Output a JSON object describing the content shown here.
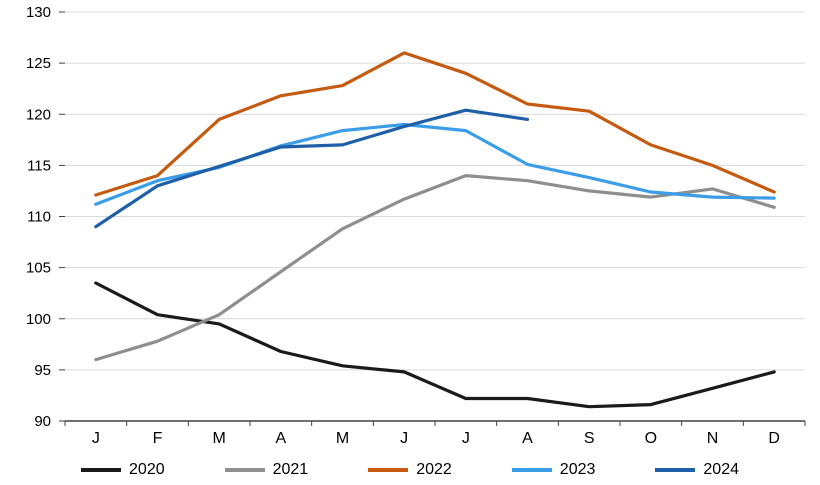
{
  "chart_data": {
    "type": "line",
    "categories": [
      "J",
      "F",
      "M",
      "A",
      "M",
      "J",
      "J",
      "A",
      "S",
      "O",
      "N",
      "D"
    ],
    "ylim": [
      90,
      130
    ],
    "ytick_step": 5,
    "grid": true,
    "legend_position": "bottom",
    "title": "",
    "xlabel": "",
    "ylabel": "",
    "series": [
      {
        "name": "2020",
        "color": "#1a1a1a",
        "values": [
          103.5,
          100.4,
          99.5,
          96.8,
          95.4,
          94.8,
          92.2,
          92.2,
          91.4,
          91.6,
          93.2,
          94.8
        ]
      },
      {
        "name": "2021",
        "color": "#8e8e8e",
        "values": [
          96.0,
          97.8,
          100.4,
          104.6,
          108.8,
          111.7,
          114.0,
          113.5,
          112.5,
          111.9,
          112.7,
          110.9
        ]
      },
      {
        "name": "2022",
        "color": "#c55b11",
        "values": [
          112.1,
          114.0,
          119.5,
          121.8,
          122.8,
          126.0,
          124.0,
          121.0,
          120.3,
          117.0,
          115.0,
          112.4
        ]
      },
      {
        "name": "2023",
        "color": "#3b9de8",
        "values": [
          111.2,
          113.5,
          114.8,
          116.9,
          118.4,
          119.0,
          118.4,
          115.1,
          113.8,
          112.4,
          111.9,
          111.8
        ]
      },
      {
        "name": "2024",
        "color": "#1f5fa8",
        "values": [
          109.0,
          113.0,
          114.9,
          116.8,
          117.0,
          118.8,
          120.4,
          119.5
        ]
      }
    ],
    "axis_color": "#404040",
    "grid_color": "#d9d9d9"
  }
}
